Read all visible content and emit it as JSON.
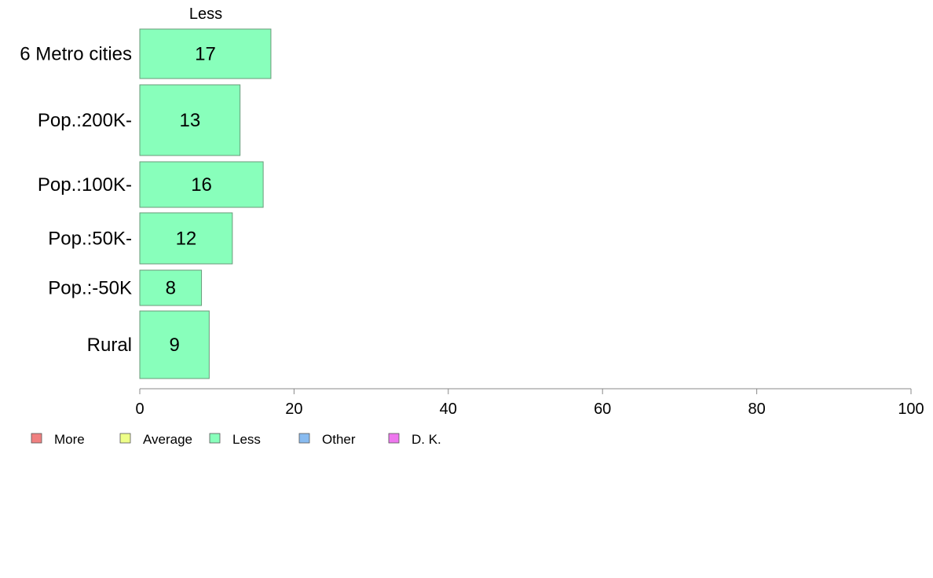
{
  "chart_data": {
    "type": "bar",
    "orientation": "horizontal",
    "title": "Less",
    "categories": [
      "6 Metro cities",
      "Pop.:200K-",
      "Pop.:100K-",
      "Pop.:50K-",
      "Pop.:-50K",
      "Rural"
    ],
    "series": [
      {
        "name": "Less",
        "values": [
          17,
          13,
          16,
          12,
          8,
          9
        ]
      }
    ],
    "xlim": [
      0,
      100
    ],
    "xticks": [
      0,
      20,
      40,
      60,
      80,
      100
    ],
    "grid": false,
    "legend": {
      "placement": "bottom-left",
      "items": [
        {
          "label": "More",
          "color": "#f08080"
        },
        {
          "label": "Average",
          "color": "#eeff88"
        },
        {
          "label": "Less",
          "color": "#88ffbb"
        },
        {
          "label": "Other",
          "color": "#88bbf0"
        },
        {
          "label": "D. K.",
          "color": "#ee77ee"
        }
      ]
    },
    "colors": {
      "bar_fill": "#88ffbb",
      "bar_stroke": "#6a9a7a",
      "axis": "#888888"
    }
  }
}
